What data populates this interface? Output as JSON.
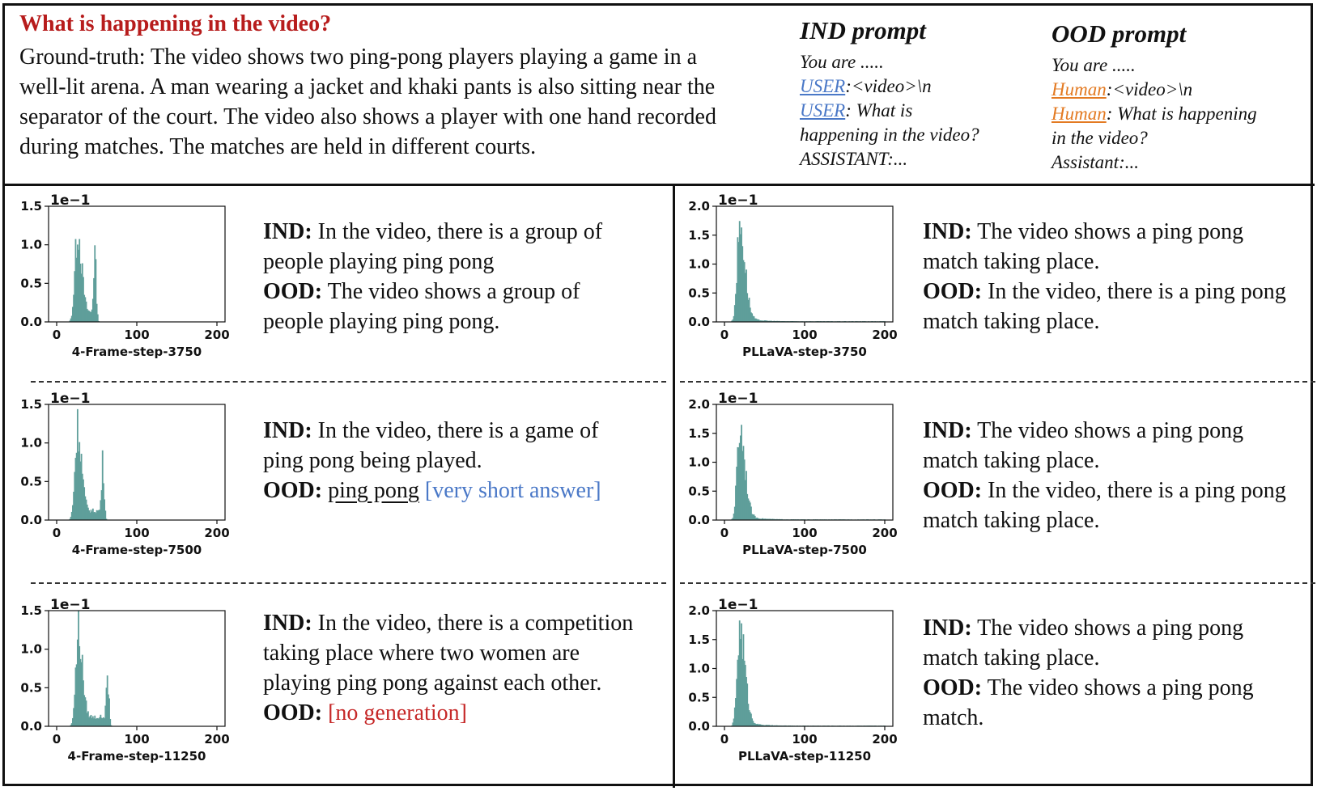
{
  "header": {
    "question": "What is happening in the video?",
    "ground_truth": "Ground-truth: The video shows two ping-pong players playing a game in a well-lit arena. A man wearing a jacket and khaki pants is also sitting near the separator of the court. The video also shows a player with one hand recorded during matches. The matches are held in different courts."
  },
  "ind_prompt": {
    "title": "IND prompt",
    "line1": "You are .....",
    "role1": "USER",
    "line2_rest": ":<video>\\n",
    "role2": "USER",
    "line3_rest": ": What is",
    "line4": "happening in the video?",
    "line5": "ASSISTANT:..."
  },
  "ood_prompt": {
    "title": "OOD prompt",
    "line1": "You are .....",
    "role1": "Human",
    "line2_rest": ":<video>\\n",
    "role2": "Human",
    "line3_rest": ": What is happening",
    "line4": "in the video?",
    "line5": "Assistant:..."
  },
  "labels": {
    "ind": "IND:",
    "ood": "OOD:"
  },
  "cells": {
    "c1": {
      "ind": "In the video, there is a group of people playing ping pong",
      "ood": "The video shows a group of people playing ping pong."
    },
    "c2": {
      "ind": "In the video, there is a game of ping pong being played.",
      "ood": "ping pong",
      "ood_note": "[very short answer]"
    },
    "c3": {
      "ind": "In the video, there is a competition taking place where two women are playing ping pong against each other.",
      "ood_note": "[no generation]"
    },
    "c4": {
      "ind": "The video shows a ping pong match taking place.",
      "ood": "In the video, there is a ping pong match taking place."
    },
    "c5": {
      "ind": "The video shows a ping pong match taking place.",
      "ood": "In the video, there is a ping pong match taking place."
    },
    "c6": {
      "ind": "The video shows a ping pong match taking place.",
      "ood": "The video shows a ping pong match."
    }
  },
  "colors": {
    "bar": "#5f9e9a",
    "question": "#b71c1c",
    "blue": "#4a78c7",
    "orange": "#e37a22",
    "red": "#c62828"
  },
  "chart_data": [
    {
      "type": "bar",
      "title": "4-Frame-step-3750",
      "xlabel": "4-Frame-step-3750",
      "scale_label": "1e−1",
      "xlim": [
        0,
        200
      ],
      "ylim": [
        0,
        1.5
      ],
      "xticks": [
        "0",
        "100",
        "200"
      ],
      "yticks": [
        "0.0",
        "0.5",
        "1.0",
        "1.5"
      ],
      "peaks": [
        {
          "x": 25,
          "height": 1.1
        },
        {
          "x": 47,
          "height": 0.8
        }
      ]
    },
    {
      "type": "bar",
      "title": "4-Frame-step-7500",
      "xlabel": "4-Frame-step-7500",
      "scale_label": "1e−1",
      "xlim": [
        0,
        200
      ],
      "ylim": [
        0,
        1.5
      ],
      "xticks": [
        "0",
        "100",
        "200"
      ],
      "yticks": [
        "0.0",
        "0.5",
        "1.0",
        "1.5"
      ],
      "peaks": [
        {
          "x": 25,
          "height": 1.1
        },
        {
          "x": 57,
          "height": 0.67
        }
      ]
    },
    {
      "type": "bar",
      "title": "4-Frame-step-11250",
      "xlabel": "4-Frame-step-11250",
      "scale_label": "1e−1",
      "xlim": [
        0,
        200
      ],
      "ylim": [
        0,
        1.5
      ],
      "xticks": [
        "0",
        "100",
        "200"
      ],
      "yticks": [
        "0.0",
        "0.5",
        "1.0",
        "1.5"
      ],
      "peaks": [
        {
          "x": 26,
          "height": 1.12
        },
        {
          "x": 63,
          "height": 0.55
        }
      ]
    },
    {
      "type": "bar",
      "title": "PLLaVA-step-3750",
      "xlabel": "PLLaVA-step-3750",
      "scale_label": "1e−1",
      "xlim": [
        0,
        200
      ],
      "ylim": [
        0,
        2.0
      ],
      "xticks": [
        "0",
        "100",
        "200"
      ],
      "yticks": [
        "0.0",
        "0.5",
        "1.0",
        "1.5",
        "2.0"
      ],
      "peaks": [
        {
          "x": 18,
          "height": 1.6
        }
      ]
    },
    {
      "type": "bar",
      "title": "PLLaVA-step-7500",
      "xlabel": "PLLaVA-step-7500",
      "scale_label": "1e−1",
      "xlim": [
        0,
        200
      ],
      "ylim": [
        0,
        2.0
      ],
      "xticks": [
        "0",
        "100",
        "200"
      ],
      "yticks": [
        "0.0",
        "0.5",
        "1.0",
        "1.5",
        "2.0"
      ],
      "peaks": [
        {
          "x": 18,
          "height": 1.55
        }
      ]
    },
    {
      "type": "bar",
      "title": "PLLaVA-step-11250",
      "xlabel": "PLLaVA-step-11250",
      "scale_label": "1e−1",
      "xlim": [
        0,
        200
      ],
      "ylim": [
        0,
        2.0
      ],
      "xticks": [
        "0",
        "100",
        "200"
      ],
      "yticks": [
        "0.0",
        "0.5",
        "1.0",
        "1.5",
        "2.0"
      ],
      "peaks": [
        {
          "x": 18,
          "height": 1.62
        }
      ]
    }
  ]
}
